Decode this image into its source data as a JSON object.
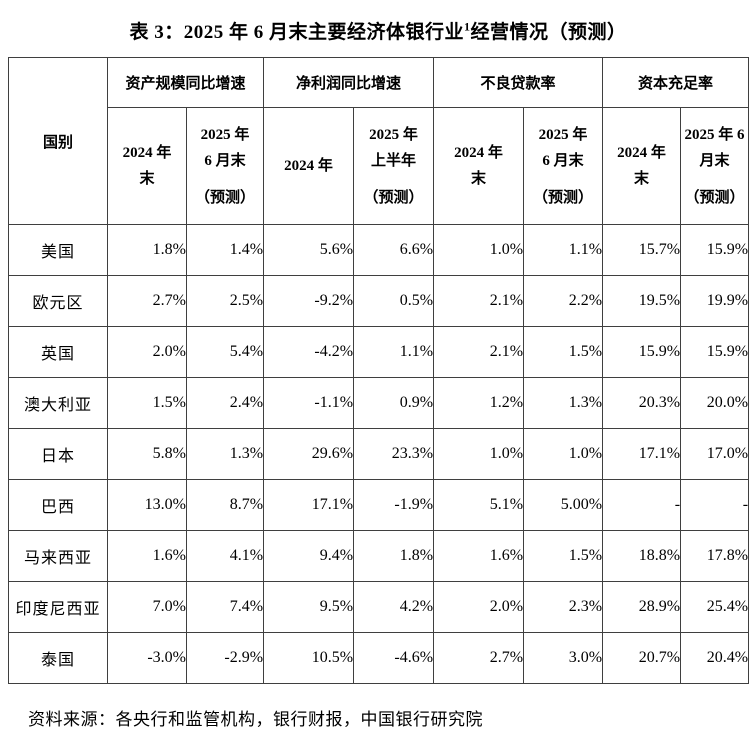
{
  "title": {
    "prefix": "表 3：2025 年 6 月末主要经济体银行业",
    "footnote_marker": "1",
    "suffix": "经营情况（预测）"
  },
  "table": {
    "corner_label": "国别",
    "groups": [
      {
        "label": "资产规模同比增速",
        "subcolumns": [
          {
            "lines": [
              "2024 年",
              "末"
            ]
          },
          {
            "lines": [
              "2025 年",
              "6 月末",
              "（预测）"
            ]
          }
        ]
      },
      {
        "label": "净利润同比增速",
        "subcolumns": [
          {
            "lines": [
              "2024 年"
            ]
          },
          {
            "lines": [
              "2025 年",
              "上半年",
              "（预测）"
            ]
          }
        ]
      },
      {
        "label": "不良贷款率",
        "subcolumns": [
          {
            "lines": [
              "2024 年",
              "末"
            ]
          },
          {
            "lines": [
              "2025 年",
              "6 月末",
              "（预测）"
            ]
          }
        ]
      },
      {
        "label": "资本充足率",
        "subcolumns": [
          {
            "lines": [
              "2024 年",
              "末"
            ]
          },
          {
            "lines": [
              "2025 年 6",
              "月末",
              "（预测）"
            ]
          }
        ]
      }
    ],
    "rows": [
      {
        "country": "美国",
        "values": [
          "1.8%",
          "1.4%",
          "5.6%",
          "6.6%",
          "1.0%",
          "1.1%",
          "15.7%",
          "15.9%"
        ]
      },
      {
        "country": "欧元区",
        "values": [
          "2.7%",
          "2.5%",
          "-9.2%",
          "0.5%",
          "2.1%",
          "2.2%",
          "19.5%",
          "19.9%"
        ]
      },
      {
        "country": "英国",
        "values": [
          "2.0%",
          "5.4%",
          "-4.2%",
          "1.1%",
          "2.1%",
          "1.5%",
          "15.9%",
          "15.9%"
        ]
      },
      {
        "country": "澳大利亚",
        "values": [
          "1.5%",
          "2.4%",
          "-1.1%",
          "0.9%",
          "1.2%",
          "1.3%",
          "20.3%",
          "20.0%"
        ]
      },
      {
        "country": "日本",
        "values": [
          "5.8%",
          "1.3%",
          "29.6%",
          "23.3%",
          "1.0%",
          "1.0%",
          "17.1%",
          "17.0%"
        ]
      },
      {
        "country": "巴西",
        "values": [
          "13.0%",
          "8.7%",
          "17.1%",
          "-1.9%",
          "5.1%",
          "5.00%",
          "-",
          "-"
        ]
      },
      {
        "country": "马来西亚",
        "values": [
          "1.6%",
          "4.1%",
          "9.4%",
          "1.8%",
          "1.6%",
          "1.5%",
          "18.8%",
          "17.8%"
        ]
      },
      {
        "country": "印度尼西亚",
        "values": [
          "7.0%",
          "7.4%",
          "9.5%",
          "4.2%",
          "2.0%",
          "2.3%",
          "28.9%",
          "25.4%"
        ]
      },
      {
        "country": "泰国",
        "values": [
          "-3.0%",
          "-2.9%",
          "10.5%",
          "-4.6%",
          "2.7%",
          "3.0%",
          "20.7%",
          "20.4%"
        ]
      }
    ]
  },
  "footer": {
    "source": "资料来源：各央行和监管机构，银行财报，中国银行研究院"
  }
}
